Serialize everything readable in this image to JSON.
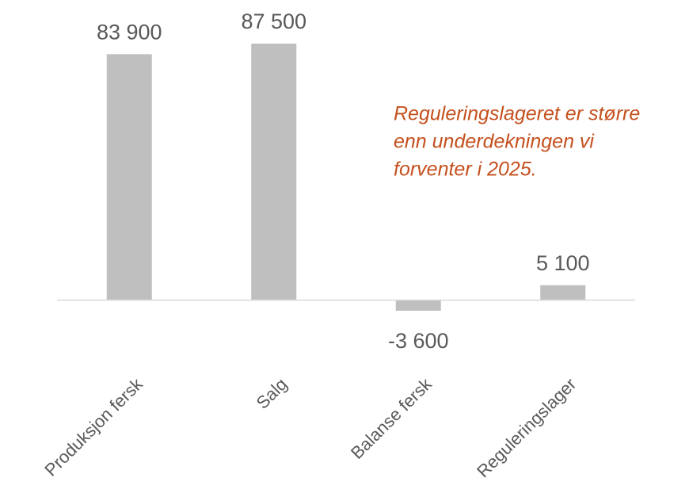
{
  "chart_data": {
    "type": "bar",
    "categories": [
      "Produksjon fersk",
      "Salg",
      "Balanse fersk",
      "Reguleringslager"
    ],
    "values": [
      83900,
      87500,
      -3600,
      5100
    ],
    "value_labels": [
      "83 900",
      "87 500",
      "-3 600",
      "5 100"
    ],
    "color": "#bfbfbf",
    "annotation": [
      "Reguleringslageret er større",
      "enn underdekningen vi",
      "forventer i 2025."
    ],
    "annotation_color": "#c5501e"
  }
}
